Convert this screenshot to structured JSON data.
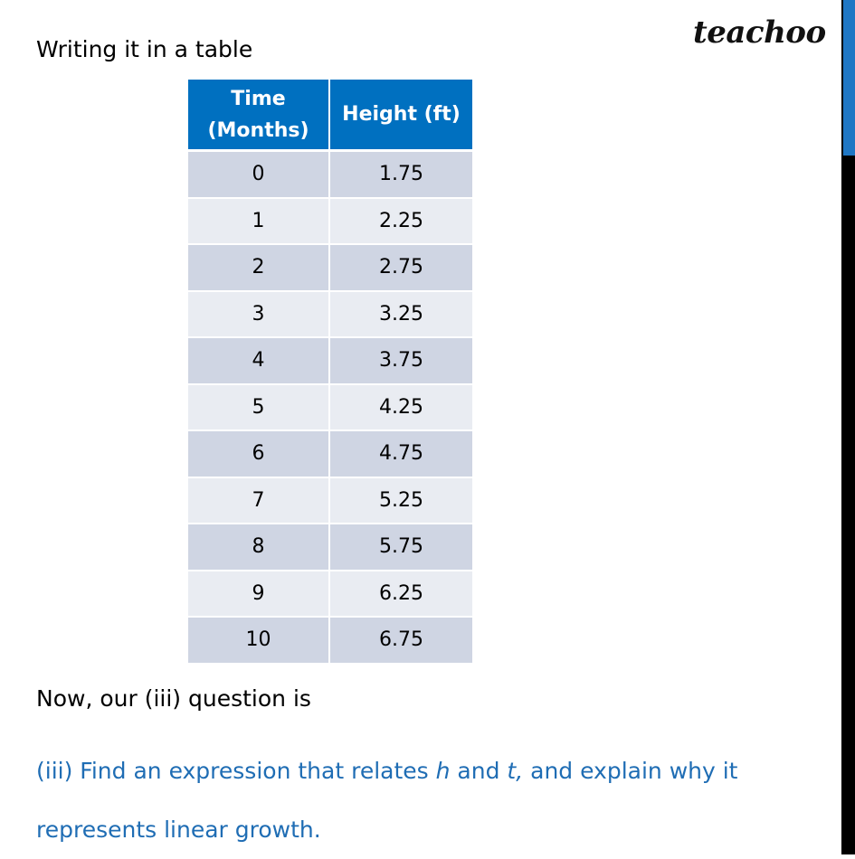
{
  "heading": "Writing it in a table",
  "logo": "teachoo",
  "table": {
    "header": [
      "Time (Months)",
      "Height (ft)"
    ],
    "rows": [
      [
        0,
        1.75
      ],
      [
        1,
        2.25
      ],
      [
        2,
        2.75
      ],
      [
        3,
        3.25
      ],
      [
        4,
        3.75
      ],
      [
        5,
        4.25
      ],
      [
        6,
        4.75
      ],
      [
        7,
        5.25
      ],
      [
        8,
        5.75
      ],
      [
        9,
        6.25
      ],
      [
        10,
        6.75
      ]
    ]
  },
  "intro": "Now, our (iii) question is",
  "question": {
    "parts": [
      "(iii)  Find an expression that relates ",
      "h",
      " and ",
      "t,",
      " and explain why it",
      "represents linear growth."
    ]
  }
}
